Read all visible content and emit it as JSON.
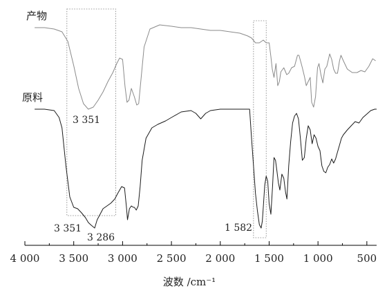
{
  "chart_data": {
    "type": "line",
    "title": "",
    "xlabel": "波数 /cm⁻¹",
    "ylabel": "",
    "xlim": [
      4000,
      400
    ],
    "x_reversed": true,
    "grid": false,
    "x_ticks": [
      {
        "value": 4000,
        "label": "4 000"
      },
      {
        "value": 3500,
        "label": "3 500"
      },
      {
        "value": 3000,
        "label": "3 000"
      },
      {
        "value": 2500,
        "label": "2 500"
      },
      {
        "value": 2000,
        "label": "2 000"
      },
      {
        "value": 1500,
        "label": "1 500"
      },
      {
        "value": 1000,
        "label": "1 000"
      },
      {
        "value": 500,
        "label": "500"
      }
    ],
    "series": [
      {
        "name": "产物",
        "color": "#8a8a8a",
        "points": [
          [
            3900,
            40
          ],
          [
            3800,
            40
          ],
          [
            3700,
            42
          ],
          [
            3620,
            46
          ],
          [
            3560,
            60
          ],
          [
            3500,
            95
          ],
          [
            3450,
            128
          ],
          [
            3400,
            150
          ],
          [
            3351,
            158
          ],
          [
            3300,
            155
          ],
          [
            3250,
            145
          ],
          [
            3200,
            133
          ],
          [
            3150,
            118
          ],
          [
            3100,
            105
          ],
          [
            3060,
            92
          ],
          [
            3030,
            84
          ],
          [
            3000,
            86
          ],
          [
            2975,
            125
          ],
          [
            2955,
            148
          ],
          [
            2935,
            145
          ],
          [
            2910,
            128
          ],
          [
            2880,
            140
          ],
          [
            2855,
            152
          ],
          [
            2835,
            150
          ],
          [
            2810,
            112
          ],
          [
            2780,
            68
          ],
          [
            2720,
            42
          ],
          [
            2620,
            36
          ],
          [
            2500,
            38
          ],
          [
            2400,
            40
          ],
          [
            2300,
            40
          ],
          [
            2200,
            42
          ],
          [
            2100,
            44
          ],
          [
            2000,
            44
          ],
          [
            1900,
            46
          ],
          [
            1800,
            48
          ],
          [
            1720,
            52
          ],
          [
            1680,
            55
          ],
          [
            1640,
            62
          ],
          [
            1600,
            62
          ],
          [
            1560,
            58
          ],
          [
            1530,
            62
          ],
          [
            1500,
            62
          ],
          [
            1482,
            82
          ],
          [
            1468,
            100
          ],
          [
            1450,
            112
          ],
          [
            1430,
            92
          ],
          [
            1412,
            124
          ],
          [
            1395,
            118
          ],
          [
            1380,
            104
          ],
          [
            1350,
            98
          ],
          [
            1320,
            108
          ],
          [
            1300,
            106
          ],
          [
            1270,
            98
          ],
          [
            1240,
            96
          ],
          [
            1210,
            80
          ],
          [
            1195,
            80
          ],
          [
            1175,
            90
          ],
          [
            1160,
            98
          ],
          [
            1140,
            110
          ],
          [
            1120,
            124
          ],
          [
            1100,
            118
          ],
          [
            1080,
            112
          ],
          [
            1065,
            148
          ],
          [
            1045,
            155
          ],
          [
            1025,
            140
          ],
          [
            1005,
            98
          ],
          [
            990,
            92
          ],
          [
            970,
            108
          ],
          [
            950,
            120
          ],
          [
            930,
            100
          ],
          [
            910,
            96
          ],
          [
            880,
            78
          ],
          [
            860,
            86
          ],
          [
            840,
            100
          ],
          [
            820,
            106
          ],
          [
            800,
            106
          ],
          [
            780,
            88
          ],
          [
            765,
            80
          ],
          [
            740,
            88
          ],
          [
            700,
            100
          ],
          [
            650,
            105
          ],
          [
            600,
            105
          ],
          [
            560,
            102
          ],
          [
            520,
            104
          ],
          [
            480,
            96
          ],
          [
            440,
            85
          ],
          [
            410,
            88
          ]
        ]
      },
      {
        "name": "原料",
        "color": "#1a1a1a",
        "points": [
          [
            3900,
            158
          ],
          [
            3800,
            158
          ],
          [
            3700,
            160
          ],
          [
            3650,
            170
          ],
          [
            3620,
            185
          ],
          [
            3580,
            240
          ],
          [
            3540,
            285
          ],
          [
            3500,
            300
          ],
          [
            3460,
            302
          ],
          [
            3420,
            308
          ],
          [
            3380,
            315
          ],
          [
            3351,
            322
          ],
          [
            3320,
            326
          ],
          [
            3286,
            330
          ],
          [
            3260,
            318
          ],
          [
            3230,
            310
          ],
          [
            3200,
            302
          ],
          [
            3160,
            298
          ],
          [
            3120,
            294
          ],
          [
            3080,
            288
          ],
          [
            3050,
            280
          ],
          [
            3010,
            270
          ],
          [
            2980,
            272
          ],
          [
            2960,
            300
          ],
          [
            2950,
            318
          ],
          [
            2930,
            302
          ],
          [
            2910,
            298
          ],
          [
            2890,
            300
          ],
          [
            2880,
            300
          ],
          [
            2860,
            304
          ],
          [
            2840,
            298
          ],
          [
            2820,
            270
          ],
          [
            2800,
            232
          ],
          [
            2760,
            200
          ],
          [
            2700,
            185
          ],
          [
            2640,
            180
          ],
          [
            2560,
            175
          ],
          [
            2500,
            170
          ],
          [
            2400,
            162
          ],
          [
            2300,
            160
          ],
          [
            2250,
            164
          ],
          [
            2200,
            172
          ],
          [
            2150,
            164
          ],
          [
            2100,
            160
          ],
          [
            2000,
            158
          ],
          [
            1900,
            158
          ],
          [
            1800,
            158
          ],
          [
            1700,
            158
          ],
          [
            1680,
            200
          ],
          [
            1640,
            280
          ],
          [
            1620,
            305
          ],
          [
            1600,
            325
          ],
          [
            1582,
            330
          ],
          [
            1570,
            320
          ],
          [
            1560,
            300
          ],
          [
            1545,
            268
          ],
          [
            1530,
            255
          ],
          [
            1515,
            262
          ],
          [
            1500,
            295
          ],
          [
            1482,
            310
          ],
          [
            1465,
            270
          ],
          [
            1450,
            228
          ],
          [
            1435,
            232
          ],
          [
            1420,
            248
          ],
          [
            1405,
            265
          ],
          [
            1390,
            275
          ],
          [
            1370,
            252
          ],
          [
            1350,
            258
          ],
          [
            1332,
            278
          ],
          [
            1318,
            288
          ],
          [
            1300,
            240
          ],
          [
            1280,
            205
          ],
          [
            1260,
            178
          ],
          [
            1240,
            168
          ],
          [
            1220,
            164
          ],
          [
            1200,
            172
          ],
          [
            1180,
            200
          ],
          [
            1160,
            232
          ],
          [
            1140,
            228
          ],
          [
            1120,
            200
          ],
          [
            1100,
            182
          ],
          [
            1080,
            188
          ],
          [
            1060,
            208
          ],
          [
            1040,
            195
          ],
          [
            1020,
            200
          ],
          [
            1000,
            212
          ],
          [
            980,
            218
          ],
          [
            960,
            240
          ],
          [
            940,
            248
          ],
          [
            920,
            250
          ],
          [
            900,
            242
          ],
          [
            880,
            238
          ],
          [
            860,
            230
          ],
          [
            840,
            236
          ],
          [
            820,
            230
          ],
          [
            800,
            220
          ],
          [
            780,
            210
          ],
          [
            760,
            200
          ],
          [
            740,
            195
          ],
          [
            700,
            188
          ],
          [
            660,
            182
          ],
          [
            620,
            176
          ],
          [
            580,
            178
          ],
          [
            540,
            170
          ],
          [
            500,
            165
          ],
          [
            460,
            160
          ],
          [
            420,
            158
          ],
          [
            400,
            158
          ]
        ]
      }
    ],
    "annotations": [
      {
        "text": "3 351",
        "series": "产物",
        "x": 3351
      },
      {
        "text": "3 351",
        "series": "原料",
        "x": 3351
      },
      {
        "text": "3 286",
        "series": "原料",
        "x": 3286
      },
      {
        "text": "1 582",
        "series": "原料",
        "x": 1582
      }
    ],
    "highlight_boxes": [
      {
        "from": 3570,
        "to": 3070
      },
      {
        "from": 1660,
        "to": 1530
      }
    ]
  }
}
